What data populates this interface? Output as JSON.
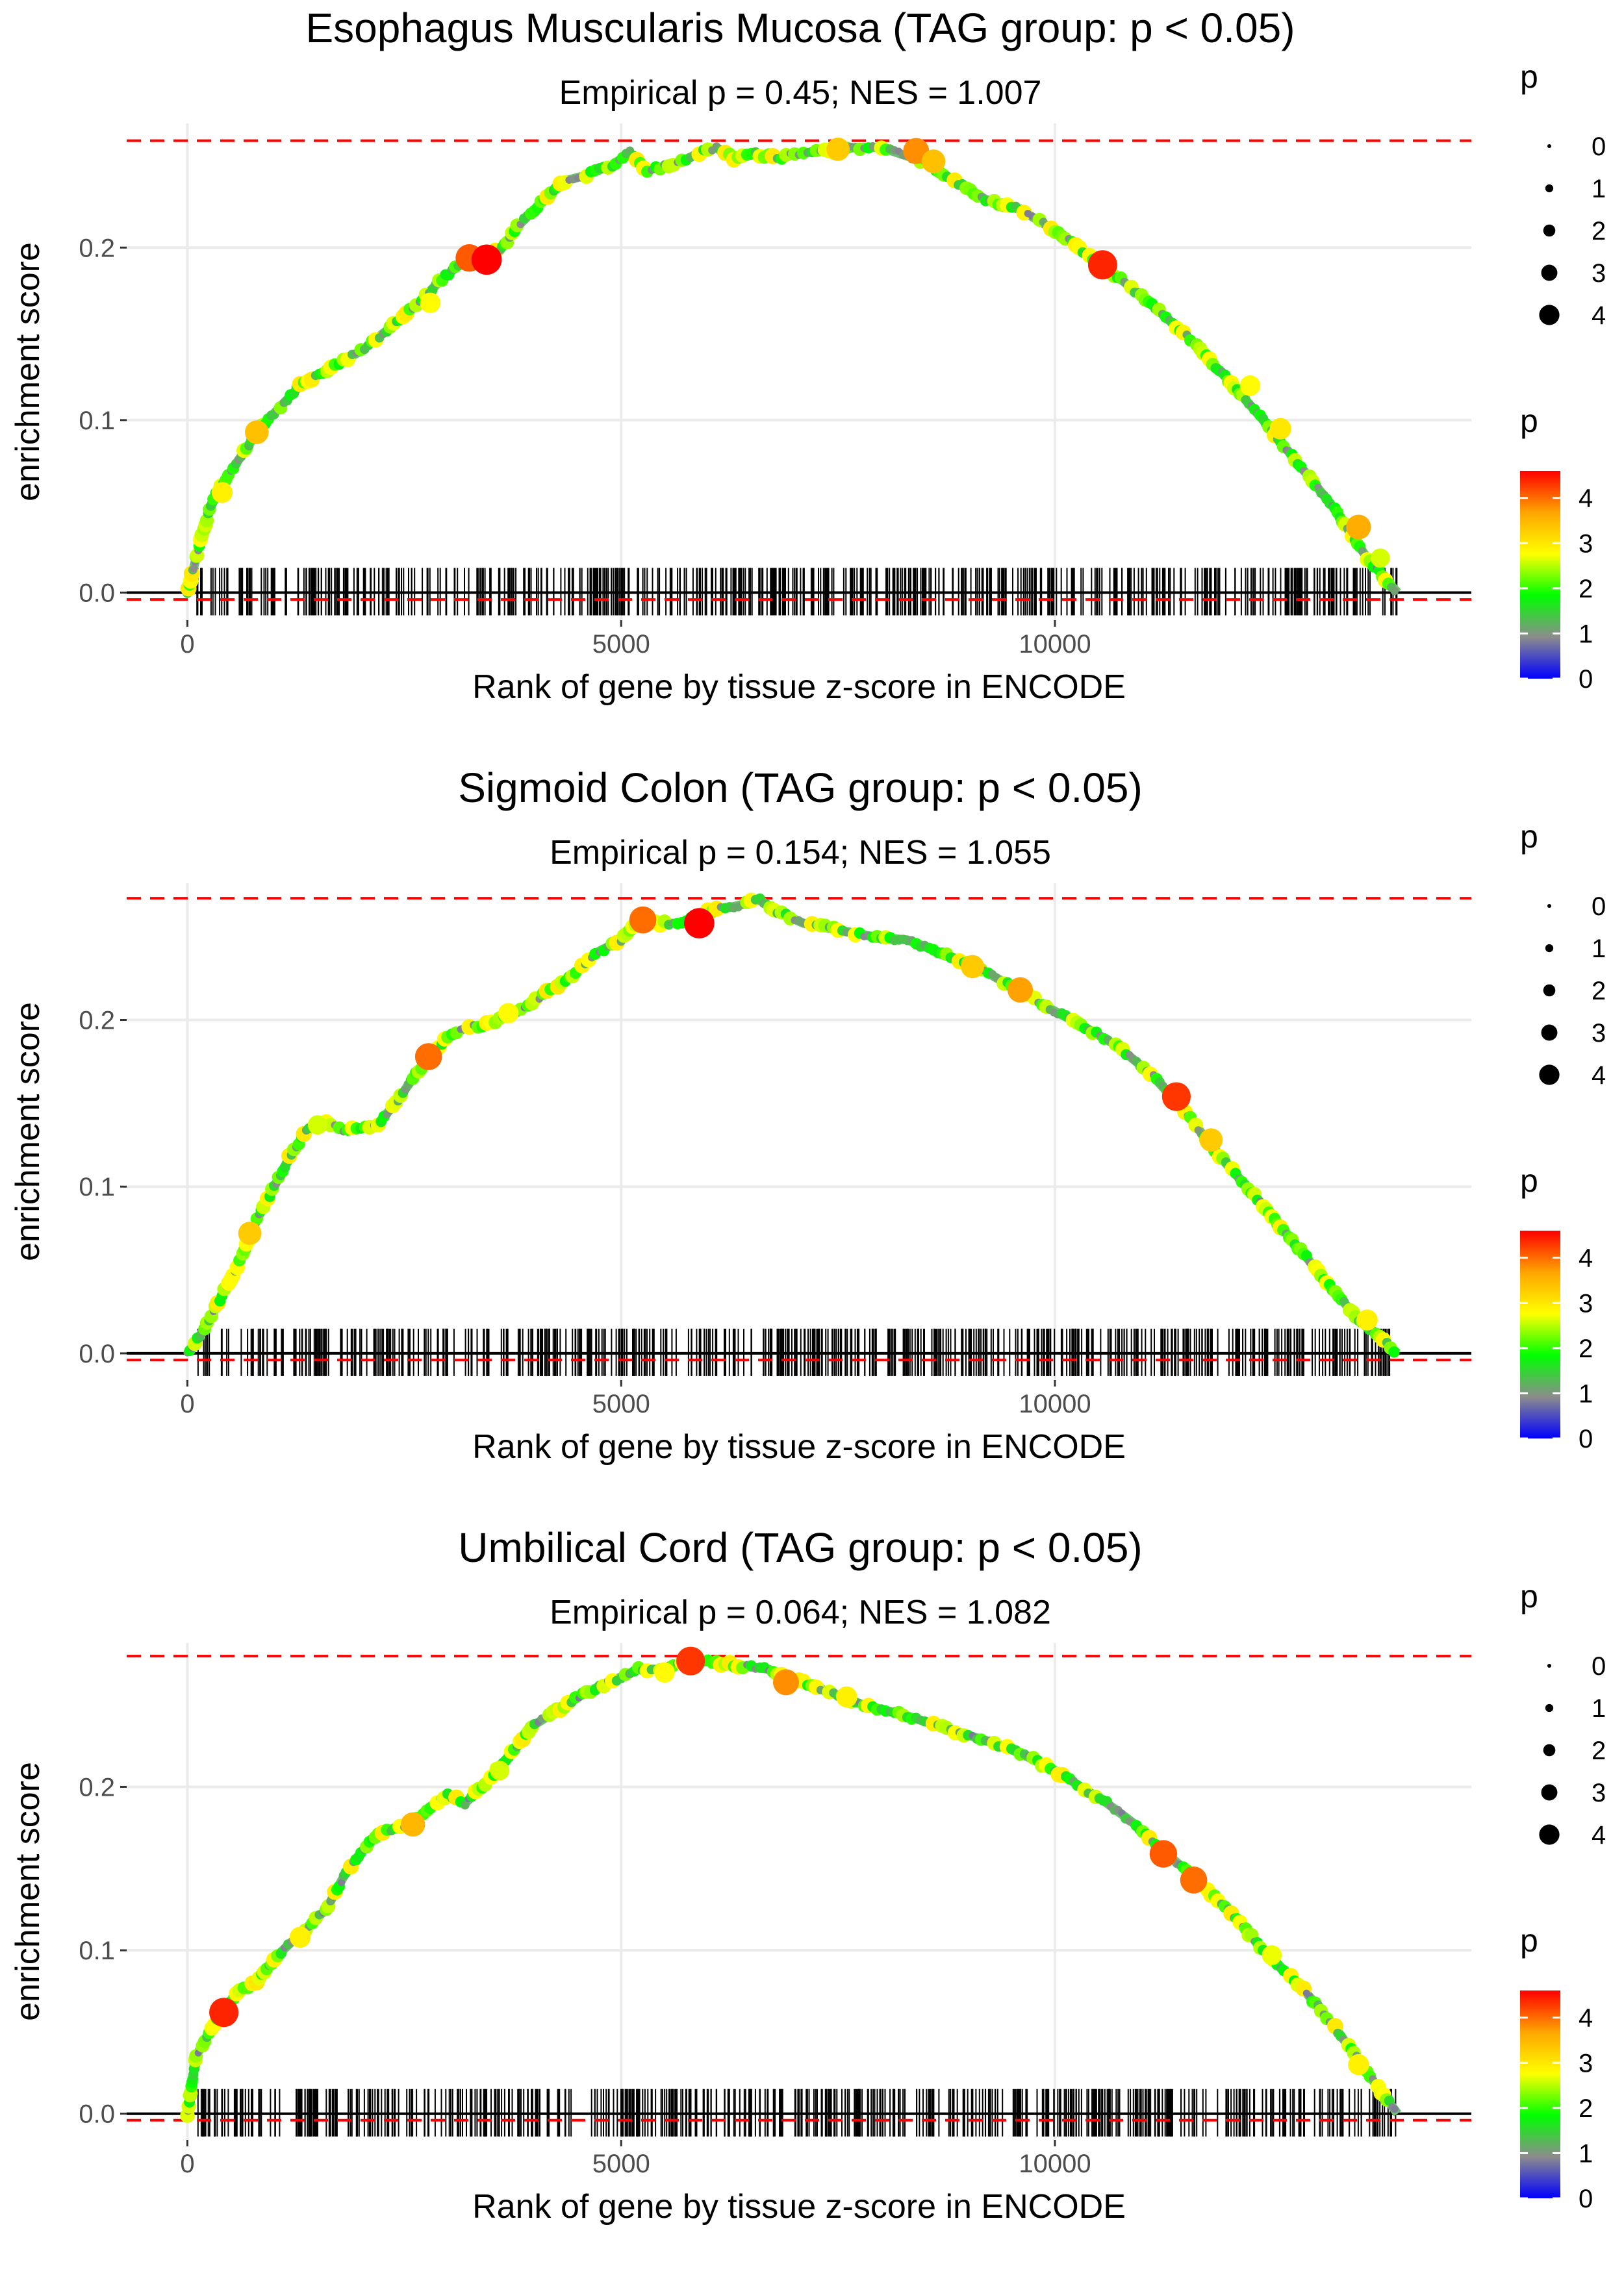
{
  "chart_data": [
    {
      "type": "line",
      "title": "Esophagus Muscularis Mucosa (TAG group: p < 0.05)",
      "subtitle": "Empirical p = 0.45; NES = 1.007",
      "xlabel": "Rank of gene by tissue z-score in ENCODE",
      "ylabel": "enrichment score",
      "xlim": [
        -700,
        14800
      ],
      "ylim": [
        -0.016,
        0.272
      ],
      "x_ticks": [
        0,
        5000,
        10000
      ],
      "x_tick_labels": [
        "0",
        "5000",
        "10000"
      ],
      "y_ticks": [
        0.0,
        0.1,
        0.2
      ],
      "y_tick_labels": [
        "0.0",
        "0.1",
        "0.2"
      ],
      "max_es_line": 0.262,
      "min_es_line": -0.004,
      "grid": true,
      "series": [
        {
          "name": "running enrichment score",
          "x": [
            0,
            150,
            300,
            500,
            800,
            1000,
            1300,
            1700,
            2000,
            2300,
            2600,
            2900,
            3200,
            3400,
            3600,
            3800,
            4000,
            4300,
            4600,
            4900,
            5100,
            5300,
            5500,
            5700,
            5900,
            6100,
            6300,
            6500,
            6800,
            7100,
            7400,
            7700,
            8000,
            8300,
            8500,
            8800,
            9200,
            9600,
            10000,
            10400,
            10800,
            11200,
            11600,
            12000,
            12400,
            12800,
            13200,
            13600,
            13950
          ],
          "y": [
            0.0,
            0.03,
            0.055,
            0.07,
            0.093,
            0.104,
            0.12,
            0.132,
            0.14,
            0.152,
            0.165,
            0.18,
            0.193,
            0.195,
            0.198,
            0.212,
            0.222,
            0.238,
            0.242,
            0.248,
            0.255,
            0.245,
            0.247,
            0.25,
            0.255,
            0.258,
            0.252,
            0.255,
            0.252,
            0.255,
            0.256,
            0.258,
            0.258,
            0.253,
            0.25,
            0.24,
            0.228,
            0.222,
            0.21,
            0.195,
            0.18,
            0.163,
            0.145,
            0.123,
            0.1,
            0.075,
            0.05,
            0.02,
            0.0
          ]
        }
      ],
      "highlight_points": [
        {
          "x": 800,
          "y": 0.093,
          "p": 3.4
        },
        {
          "x": 400,
          "y": 0.058,
          "p": 2.9
        },
        {
          "x": 2800,
          "y": 0.168,
          "p": 2.8
        },
        {
          "x": 3250,
          "y": 0.194,
          "p": 4.1
        },
        {
          "x": 3450,
          "y": 0.193,
          "p": 4.6
        },
        {
          "x": 7500,
          "y": 0.257,
          "p": 3.3
        },
        {
          "x": 8400,
          "y": 0.256,
          "p": 3.8
        },
        {
          "x": 8600,
          "y": 0.25,
          "p": 3.4
        },
        {
          "x": 10550,
          "y": 0.19,
          "p": 4.4
        },
        {
          "x": 12250,
          "y": 0.12,
          "p": 2.8
        },
        {
          "x": 12600,
          "y": 0.095,
          "p": 3.0
        },
        {
          "x": 13500,
          "y": 0.038,
          "p": 3.6
        },
        {
          "x": 13750,
          "y": 0.02,
          "p": 2.6
        }
      ],
      "legend_size": {
        "title": "p",
        "values": [
          0,
          1,
          2,
          3,
          4
        ],
        "labels": [
          "0",
          "1",
          "2",
          "3",
          "4"
        ]
      },
      "legend_color": {
        "title": "p",
        "values": [
          0,
          1,
          2,
          3,
          4
        ],
        "labels": [
          "0",
          "1",
          "2",
          "3",
          "4"
        ],
        "max": 4.6
      }
    },
    {
      "type": "line",
      "title": "Sigmoid Colon (TAG group: p < 0.05)",
      "subtitle": "Empirical p = 0.154; NES = 1.055",
      "xlabel": "Rank of gene by tissue z-score in ENCODE",
      "ylabel": "enrichment score",
      "xlim": [
        -700,
        14800
      ],
      "ylim": [
        -0.016,
        0.282
      ],
      "x_ticks": [
        0,
        5000,
        10000
      ],
      "x_tick_labels": [
        "0",
        "5000",
        "10000"
      ],
      "y_ticks": [
        0.0,
        0.1,
        0.2
      ],
      "y_tick_labels": [
        "0.0",
        "0.1",
        "0.2"
      ],
      "max_es_line": 0.273,
      "min_es_line": -0.004,
      "grid": true,
      "series": [
        {
          "name": "running enrichment score",
          "x": [
            0,
            200,
            400,
            600,
            800,
            1000,
            1200,
            1400,
            1600,
            1800,
            2000,
            2200,
            2400,
            2600,
            2800,
            3000,
            3200,
            3500,
            3800,
            4100,
            4400,
            4700,
            5000,
            5200,
            5400,
            5700,
            6000,
            6300,
            6600,
            6800,
            7100,
            7500,
            7900,
            8300,
            8700,
            9100,
            9500,
            9900,
            10300,
            10700,
            11100,
            11500,
            11900,
            12300,
            12700,
            13100,
            13500,
            13950
          ],
          "y": [
            0.0,
            0.015,
            0.035,
            0.055,
            0.08,
            0.1,
            0.12,
            0.135,
            0.138,
            0.134,
            0.135,
            0.138,
            0.15,
            0.165,
            0.178,
            0.19,
            0.195,
            0.198,
            0.205,
            0.215,
            0.225,
            0.24,
            0.248,
            0.26,
            0.258,
            0.258,
            0.265,
            0.268,
            0.272,
            0.265,
            0.258,
            0.254,
            0.25,
            0.248,
            0.24,
            0.232,
            0.22,
            0.208,
            0.197,
            0.185,
            0.168,
            0.145,
            0.118,
            0.095,
            0.07,
            0.045,
            0.02,
            0.0
          ]
        }
      ],
      "highlight_points": [
        {
          "x": 720,
          "y": 0.072,
          "p": 3.3
        },
        {
          "x": 1500,
          "y": 0.137,
          "p": 2.6
        },
        {
          "x": 2780,
          "y": 0.178,
          "p": 4.0
        },
        {
          "x": 3700,
          "y": 0.204,
          "p": 2.8
        },
        {
          "x": 5250,
          "y": 0.26,
          "p": 4.0
        },
        {
          "x": 5900,
          "y": 0.258,
          "p": 4.6
        },
        {
          "x": 9050,
          "y": 0.232,
          "p": 3.3
        },
        {
          "x": 9600,
          "y": 0.218,
          "p": 3.7
        },
        {
          "x": 11400,
          "y": 0.154,
          "p": 4.3
        },
        {
          "x": 11800,
          "y": 0.128,
          "p": 3.3
        },
        {
          "x": 13600,
          "y": 0.02,
          "p": 2.9
        }
      ],
      "legend_size": {
        "title": "p",
        "values": [
          0,
          1,
          2,
          3,
          4
        ],
        "labels": [
          "0",
          "1",
          "2",
          "3",
          "4"
        ]
      },
      "legend_color": {
        "title": "p",
        "values": [
          0,
          1,
          2,
          3,
          4
        ],
        "labels": [
          "0",
          "1",
          "2",
          "3",
          "4"
        ],
        "max": 4.6
      }
    },
    {
      "type": "line",
      "title": "Umbilical Cord (TAG group: p < 0.05)",
      "subtitle": "Empirical p = 0.064; NES = 1.082",
      "xlabel": "Rank of gene by tissue z-score in ENCODE",
      "ylabel": "enrichment score",
      "xlim": [
        -700,
        14800
      ],
      "ylim": [
        -0.016,
        0.288
      ],
      "x_ticks": [
        0,
        5000,
        10000
      ],
      "x_tick_labels": [
        "0",
        "5000",
        "10000"
      ],
      "y_ticks": [
        0.0,
        0.1,
        0.2
      ],
      "y_tick_labels": [
        "0.0",
        "0.1",
        "0.2"
      ],
      "max_es_line": 0.28,
      "min_es_line": -0.004,
      "grid": true,
      "series": [
        {
          "name": "running enrichment score",
          "x": [
            0,
            100,
            250,
            400,
            600,
            800,
            1000,
            1200,
            1400,
            1600,
            1800,
            2000,
            2200,
            2400,
            2600,
            2800,
            3000,
            3200,
            3400,
            3600,
            3800,
            4000,
            4300,
            4600,
            4900,
            5200,
            5500,
            5800,
            6100,
            6400,
            6700,
            7000,
            7300,
            7600,
            7900,
            8200,
            8500,
            8800,
            9100,
            9400,
            9700,
            10000,
            10300,
            10600,
            10900,
            11200,
            11600,
            12000,
            12400,
            12800,
            13200,
            13600,
            13950
          ],
          "y": [
            0.0,
            0.035,
            0.05,
            0.062,
            0.075,
            0.08,
            0.095,
            0.105,
            0.115,
            0.125,
            0.145,
            0.16,
            0.172,
            0.175,
            0.178,
            0.188,
            0.195,
            0.19,
            0.2,
            0.212,
            0.225,
            0.238,
            0.248,
            0.258,
            0.265,
            0.272,
            0.272,
            0.278,
            0.276,
            0.274,
            0.272,
            0.265,
            0.26,
            0.254,
            0.248,
            0.245,
            0.24,
            0.235,
            0.23,
            0.225,
            0.218,
            0.21,
            0.2,
            0.19,
            0.178,
            0.163,
            0.145,
            0.125,
            0.1,
            0.08,
            0.055,
            0.025,
            0.0
          ]
        }
      ],
      "highlight_points": [
        {
          "x": 420,
          "y": 0.062,
          "p": 4.4
        },
        {
          "x": 1300,
          "y": 0.108,
          "p": 2.9
        },
        {
          "x": 2600,
          "y": 0.177,
          "p": 3.5
        },
        {
          "x": 3600,
          "y": 0.21,
          "p": 2.6
        },
        {
          "x": 5500,
          "y": 0.27,
          "p": 2.8
        },
        {
          "x": 5800,
          "y": 0.277,
          "p": 4.3
        },
        {
          "x": 6900,
          "y": 0.264,
          "p": 3.8
        },
        {
          "x": 7600,
          "y": 0.255,
          "p": 2.9
        },
        {
          "x": 11250,
          "y": 0.159,
          "p": 4.1
        },
        {
          "x": 11600,
          "y": 0.143,
          "p": 4.0
        },
        {
          "x": 12500,
          "y": 0.097,
          "p": 2.7
        },
        {
          "x": 13500,
          "y": 0.03,
          "p": 2.9
        }
      ],
      "legend_size": {
        "title": "p",
        "values": [
          0,
          1,
          2,
          3,
          4
        ],
        "labels": [
          "0",
          "1",
          "2",
          "3",
          "4"
        ]
      },
      "legend_color": {
        "title": "p",
        "values": [
          0,
          1,
          2,
          3,
          4
        ],
        "labels": [
          "0",
          "1",
          "2",
          "3",
          "4"
        ],
        "max": 4.6
      }
    }
  ],
  "colors": {
    "grid": "#ebebeb",
    "dashed_lines": "#ff0000",
    "zero_line": "#000000",
    "text": "#000000",
    "tick_text": "#4d4d4d",
    "gradient_stops": [
      "#0000ff",
      "#8c8c8c",
      "#00ff00",
      "#ffff00",
      "#ffa500",
      "#ff0000"
    ]
  }
}
